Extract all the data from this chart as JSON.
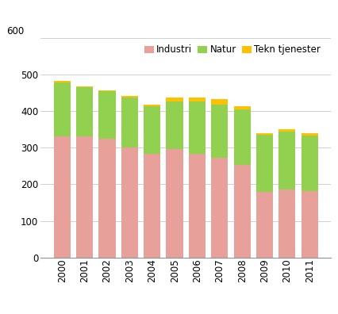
{
  "years": [
    2000,
    2001,
    2002,
    2003,
    2004,
    2005,
    2006,
    2007,
    2008,
    2009,
    2010,
    2011
  ],
  "industri": [
    330,
    330,
    323,
    300,
    283,
    296,
    282,
    273,
    252,
    180,
    185,
    182
  ],
  "natur": [
    148,
    135,
    130,
    137,
    130,
    130,
    143,
    145,
    153,
    155,
    158,
    150
  ],
  "tekn_tjenester": [
    3,
    3,
    3,
    3,
    5,
    10,
    12,
    15,
    8,
    5,
    8,
    7
  ],
  "colors": {
    "industri": "#e8a09a",
    "natur": "#92d050",
    "tekn_tjenester": "#ffc000"
  },
  "legend_labels": [
    "Industri",
    "Natur",
    "Tekn tjenester"
  ],
  "ylim": [
    0,
    600
  ],
  "yticks": [
    0,
    100,
    200,
    300,
    400,
    500,
    600
  ],
  "background_color": "#ffffff",
  "bar_width": 0.75
}
